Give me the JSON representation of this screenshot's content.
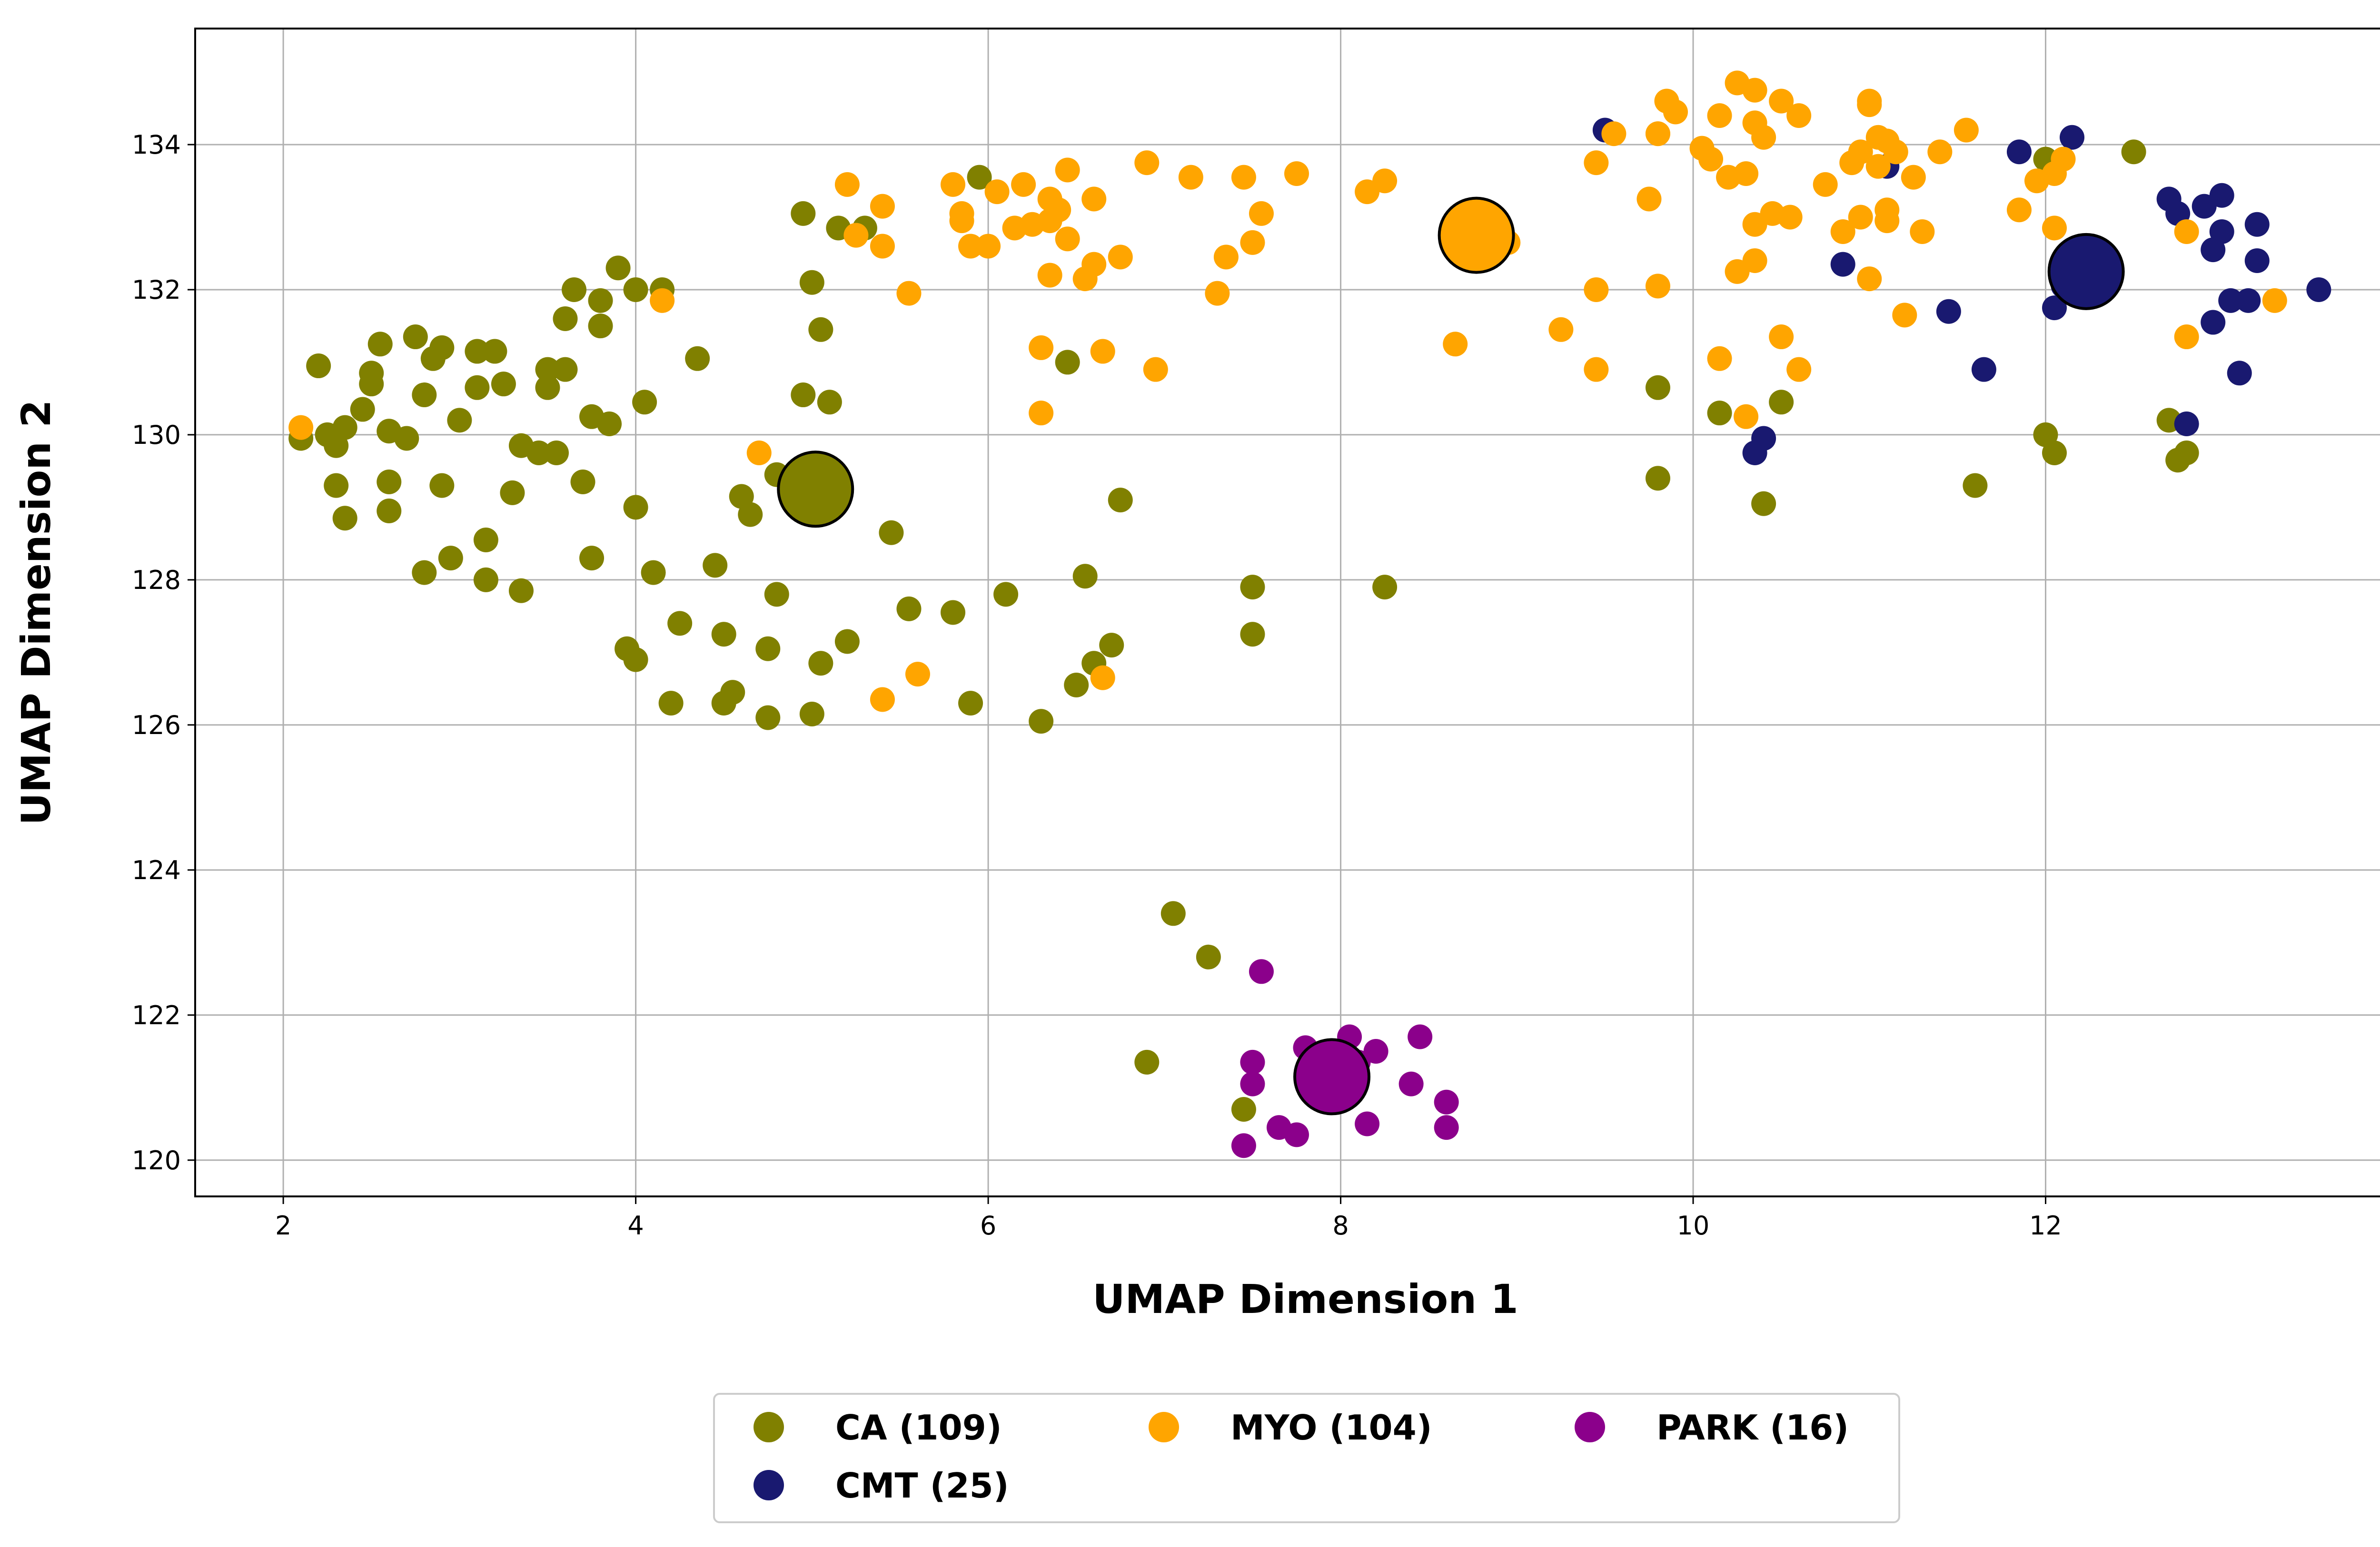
{
  "chart_data": {
    "type": "scatter",
    "xlabel": "UMAP Dimension 1",
    "ylabel": "UMAP Dimension 2",
    "xlim": [
      1.5,
      14.1
    ],
    "ylim": [
      119.5,
      135.6
    ],
    "xticks": [
      2,
      4,
      6,
      8,
      10,
      12,
      14
    ],
    "yticks": [
      120,
      122,
      124,
      126,
      128,
      130,
      132,
      134
    ],
    "grid": true,
    "legend_position": "bottom-center, below plot",
    "series": [
      {
        "name": "CA (109)",
        "color": "#808000",
        "centroid": [
          5.02,
          129.25
        ],
        "points": [
          [
            2.1,
            129.95
          ],
          [
            2.2,
            130.95
          ],
          [
            2.25,
            130.0
          ],
          [
            2.3,
            129.85
          ],
          [
            2.3,
            129.3
          ],
          [
            2.35,
            128.85
          ],
          [
            2.35,
            130.1
          ],
          [
            2.45,
            130.35
          ],
          [
            2.5,
            130.85
          ],
          [
            2.5,
            130.7
          ],
          [
            2.55,
            131.25
          ],
          [
            2.6,
            130.05
          ],
          [
            2.6,
            129.35
          ],
          [
            2.6,
            128.95
          ],
          [
            2.7,
            129.95
          ],
          [
            2.75,
            131.35
          ],
          [
            2.8,
            130.55
          ],
          [
            2.8,
            128.1
          ],
          [
            2.85,
            131.05
          ],
          [
            2.9,
            131.2
          ],
          [
            2.9,
            129.3
          ],
          [
            2.95,
            128.3
          ],
          [
            3.0,
            130.2
          ],
          [
            3.1,
            131.15
          ],
          [
            3.1,
            130.65
          ],
          [
            3.15,
            128.0
          ],
          [
            3.15,
            128.55
          ],
          [
            3.2,
            131.15
          ],
          [
            3.25,
            130.7
          ],
          [
            3.3,
            129.2
          ],
          [
            3.35,
            129.85
          ],
          [
            3.35,
            127.85
          ],
          [
            3.45,
            129.75
          ],
          [
            3.5,
            130.9
          ],
          [
            3.5,
            130.65
          ],
          [
            3.55,
            129.75
          ],
          [
            3.6,
            131.6
          ],
          [
            3.6,
            130.9
          ],
          [
            3.65,
            132.0
          ],
          [
            3.7,
            129.35
          ],
          [
            3.75,
            130.25
          ],
          [
            3.75,
            128.3
          ],
          [
            3.8,
            131.85
          ],
          [
            3.8,
            131.5
          ],
          [
            3.85,
            130.15
          ],
          [
            3.9,
            132.3
          ],
          [
            3.95,
            127.05
          ],
          [
            4.0,
            126.9
          ],
          [
            4.0,
            129.0
          ],
          [
            4.0,
            132.0
          ],
          [
            4.05,
            130.45
          ],
          [
            4.1,
            128.1
          ],
          [
            4.15,
            132.0
          ],
          [
            4.2,
            126.3
          ],
          [
            4.25,
            127.4
          ],
          [
            4.35,
            131.05
          ],
          [
            4.45,
            128.2
          ],
          [
            4.5,
            127.25
          ],
          [
            4.5,
            126.3
          ],
          [
            4.55,
            126.45
          ],
          [
            4.6,
            129.15
          ],
          [
            4.65,
            128.9
          ],
          [
            4.75,
            127.05
          ],
          [
            4.75,
            126.1
          ],
          [
            4.8,
            127.8
          ],
          [
            4.8,
            129.45
          ],
          [
            4.95,
            130.55
          ],
          [
            4.95,
            133.05
          ],
          [
            5.0,
            126.15
          ],
          [
            5.0,
            132.1
          ],
          [
            5.05,
            131.45
          ],
          [
            5.05,
            126.85
          ],
          [
            5.1,
            130.45
          ],
          [
            5.15,
            132.85
          ],
          [
            5.2,
            127.15
          ],
          [
            5.45,
            128.65
          ],
          [
            5.55,
            127.6
          ],
          [
            5.8,
            127.55
          ],
          [
            5.9,
            126.3
          ],
          [
            5.95,
            133.55
          ],
          [
            6.1,
            127.8
          ],
          [
            6.3,
            126.05
          ],
          [
            6.45,
            131.0
          ],
          [
            6.5,
            126.55
          ],
          [
            6.55,
            128.05
          ],
          [
            6.6,
            126.85
          ],
          [
            6.7,
            127.1
          ],
          [
            6.75,
            129.1
          ],
          [
            6.9,
            121.35
          ],
          [
            7.05,
            123.4
          ],
          [
            7.25,
            122.8
          ],
          [
            7.45,
            120.7
          ],
          [
            7.5,
            127.9
          ],
          [
            7.5,
            127.25
          ],
          [
            8.25,
            127.9
          ],
          [
            9.8,
            130.65
          ],
          [
            9.8,
            129.4
          ],
          [
            10.15,
            130.3
          ],
          [
            10.4,
            129.05
          ],
          [
            10.5,
            130.45
          ],
          [
            11.6,
            129.3
          ],
          [
            12.0,
            130.0
          ],
          [
            12.05,
            129.75
          ],
          [
            12.5,
            133.9
          ],
          [
            12.7,
            130.2
          ],
          [
            12.75,
            129.65
          ],
          [
            12.8,
            129.75
          ],
          [
            12.0,
            133.8
          ],
          [
            5.3,
            132.85
          ]
        ]
      },
      {
        "name": "CMT (25)",
        "color": "#191970",
        "centroid": [
          12.23,
          132.25
        ],
        "points": [
          [
            9.5,
            134.2
          ],
          [
            10.35,
            129.75
          ],
          [
            10.4,
            129.95
          ],
          [
            10.85,
            132.35
          ],
          [
            11.1,
            133.7
          ],
          [
            11.45,
            131.7
          ],
          [
            11.65,
            130.9
          ],
          [
            11.85,
            133.9
          ],
          [
            12.05,
            131.75
          ],
          [
            12.15,
            134.1
          ],
          [
            12.7,
            133.25
          ],
          [
            12.75,
            133.05
          ],
          [
            12.8,
            130.15
          ],
          [
            12.9,
            133.15
          ],
          [
            12.95,
            132.55
          ],
          [
            12.95,
            131.55
          ],
          [
            13.0,
            132.8
          ],
          [
            13.0,
            133.3
          ],
          [
            13.05,
            131.85
          ],
          [
            13.1,
            130.85
          ],
          [
            13.15,
            131.85
          ],
          [
            13.2,
            132.4
          ],
          [
            13.2,
            132.9
          ],
          [
            13.55,
            132.0
          ],
          [
            12.1,
            132.05
          ]
        ]
      },
      {
        "name": "MYO (104)",
        "color": "#ffa500",
        "centroid": [
          8.77,
          132.75
        ],
        "points": [
          [
            2.1,
            130.1
          ],
          [
            4.15,
            131.85
          ],
          [
            4.7,
            129.75
          ],
          [
            5.2,
            133.45
          ],
          [
            5.25,
            132.75
          ],
          [
            5.4,
            133.15
          ],
          [
            5.4,
            132.6
          ],
          [
            5.4,
            126.35
          ],
          [
            5.55,
            131.95
          ],
          [
            5.6,
            126.7
          ],
          [
            5.8,
            133.45
          ],
          [
            5.85,
            133.05
          ],
          [
            5.85,
            132.95
          ],
          [
            5.9,
            132.6
          ],
          [
            6.0,
            132.6
          ],
          [
            6.05,
            133.35
          ],
          [
            6.15,
            132.85
          ],
          [
            6.2,
            133.45
          ],
          [
            6.25,
            132.9
          ],
          [
            6.3,
            131.2
          ],
          [
            6.3,
            130.3
          ],
          [
            6.35,
            133.25
          ],
          [
            6.35,
            132.95
          ],
          [
            6.35,
            132.2
          ],
          [
            6.4,
            133.1
          ],
          [
            6.45,
            133.65
          ],
          [
            6.45,
            132.7
          ],
          [
            6.55,
            132.15
          ],
          [
            6.6,
            133.25
          ],
          [
            6.6,
            132.35
          ],
          [
            6.65,
            131.15
          ],
          [
            6.65,
            126.65
          ],
          [
            6.75,
            132.45
          ],
          [
            6.9,
            133.75
          ],
          [
            6.95,
            130.9
          ],
          [
            7.15,
            133.55
          ],
          [
            7.3,
            131.95
          ],
          [
            7.35,
            132.45
          ],
          [
            7.45,
            133.55
          ],
          [
            7.5,
            132.65
          ],
          [
            7.55,
            133.05
          ],
          [
            7.75,
            133.6
          ],
          [
            8.15,
            133.35
          ],
          [
            8.25,
            133.5
          ],
          [
            8.65,
            131.25
          ],
          [
            8.95,
            132.65
          ],
          [
            9.25,
            131.45
          ],
          [
            9.45,
            133.75
          ],
          [
            9.45,
            132.0
          ],
          [
            9.45,
            130.9
          ],
          [
            9.55,
            134.15
          ],
          [
            9.75,
            133.25
          ],
          [
            9.8,
            134.15
          ],
          [
            9.8,
            132.05
          ],
          [
            9.85,
            134.6
          ],
          [
            9.9,
            134.45
          ],
          [
            10.05,
            133.95
          ],
          [
            10.1,
            133.8
          ],
          [
            10.15,
            131.05
          ],
          [
            10.15,
            134.4
          ],
          [
            10.2,
            133.55
          ],
          [
            10.25,
            134.85
          ],
          [
            10.25,
            132.25
          ],
          [
            10.3,
            133.6
          ],
          [
            10.3,
            130.25
          ],
          [
            10.35,
            134.75
          ],
          [
            10.35,
            134.3
          ],
          [
            10.35,
            132.4
          ],
          [
            10.4,
            134.1
          ],
          [
            10.45,
            133.05
          ],
          [
            10.5,
            134.6
          ],
          [
            10.5,
            131.35
          ],
          [
            10.55,
            133.0
          ],
          [
            10.6,
            134.4
          ],
          [
            10.6,
            130.9
          ],
          [
            10.75,
            133.45
          ],
          [
            10.85,
            132.8
          ],
          [
            10.9,
            133.75
          ],
          [
            10.95,
            133.0
          ],
          [
            10.95,
            133.9
          ],
          [
            11.0,
            134.6
          ],
          [
            11.0,
            134.55
          ],
          [
            11.0,
            132.15
          ],
          [
            11.05,
            133.7
          ],
          [
            11.1,
            132.95
          ],
          [
            11.1,
            133.1
          ],
          [
            11.1,
            134.05
          ],
          [
            11.15,
            133.9
          ],
          [
            11.2,
            131.65
          ],
          [
            11.25,
            133.55
          ],
          [
            11.3,
            132.8
          ],
          [
            11.4,
            133.9
          ],
          [
            11.55,
            134.2
          ],
          [
            11.85,
            133.1
          ],
          [
            11.95,
            133.5
          ],
          [
            12.05,
            133.6
          ],
          [
            12.1,
            133.8
          ],
          [
            12.05,
            132.85
          ],
          [
            12.8,
            132.8
          ],
          [
            12.8,
            131.35
          ],
          [
            13.3,
            131.85
          ],
          [
            10.35,
            132.9
          ],
          [
            9.8,
            134.15
          ],
          [
            11.05,
            134.1
          ]
        ]
      },
      {
        "name": "PARK (16)",
        "color": "#8b008b",
        "centroid": [
          7.95,
          121.15
        ],
        "points": [
          [
            7.45,
            120.2
          ],
          [
            7.5,
            121.35
          ],
          [
            7.5,
            121.05
          ],
          [
            7.55,
            122.6
          ],
          [
            7.65,
            120.45
          ],
          [
            7.75,
            120.35
          ],
          [
            7.8,
            121.55
          ],
          [
            7.85,
            121.3
          ],
          [
            8.05,
            121.7
          ],
          [
            8.1,
            121.35
          ],
          [
            8.15,
            120.5
          ],
          [
            8.2,
            121.5
          ],
          [
            8.4,
            121.05
          ],
          [
            8.45,
            121.7
          ],
          [
            8.6,
            120.8
          ],
          [
            8.6,
            120.45
          ]
        ]
      }
    ]
  }
}
